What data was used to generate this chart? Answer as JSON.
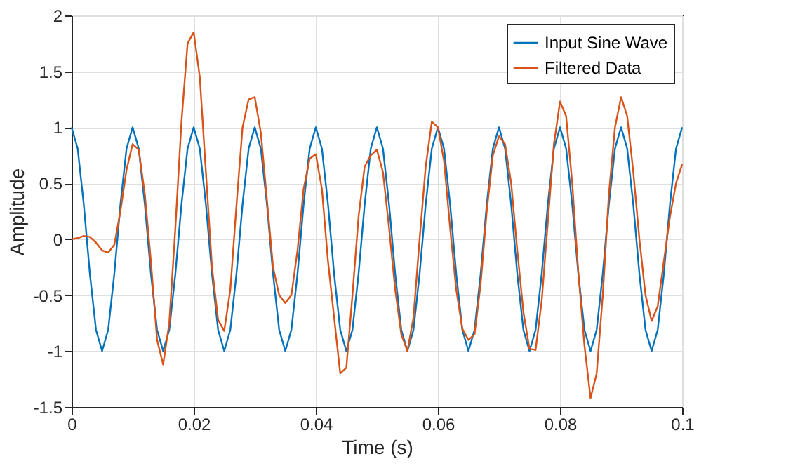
{
  "chart_data": {
    "type": "line",
    "xlabel": "Time (s)",
    "ylabel": "Amplitude",
    "x": [
      0,
      0.001,
      0.002,
      0.003,
      0.004,
      0.005,
      0.006,
      0.007,
      0.008,
      0.009,
      0.01,
      0.011,
      0.012,
      0.013,
      0.014,
      0.015,
      0.016,
      0.017,
      0.018,
      0.019,
      0.02,
      0.021,
      0.022,
      0.023,
      0.024,
      0.025,
      0.026,
      0.027,
      0.028,
      0.029,
      0.03,
      0.031,
      0.032,
      0.033,
      0.034,
      0.035,
      0.036,
      0.037,
      0.038,
      0.039,
      0.04,
      0.041,
      0.042,
      0.043,
      0.044,
      0.045,
      0.046,
      0.047,
      0.048,
      0.049,
      0.05,
      0.051,
      0.052,
      0.053,
      0.054,
      0.055,
      0.056,
      0.057,
      0.058,
      0.059,
      0.06,
      0.061,
      0.062,
      0.063,
      0.064,
      0.065,
      0.066,
      0.067,
      0.068,
      0.069,
      0.07,
      0.071,
      0.072,
      0.073,
      0.074,
      0.075,
      0.076,
      0.077,
      0.078,
      0.079,
      0.08,
      0.081,
      0.082,
      0.083,
      0.084,
      0.085,
      0.086,
      0.087,
      0.088,
      0.089,
      0.09,
      0.091,
      0.092,
      0.093,
      0.094,
      0.095,
      0.096,
      0.097,
      0.098,
      0.099,
      0.1
    ],
    "series": [
      {
        "name": "Input Sine Wave",
        "color": "#0072bd",
        "values": [
          1,
          0.81,
          0.31,
          -0.31,
          -0.81,
          -1,
          -0.81,
          -0.31,
          0.31,
          0.81,
          1,
          0.81,
          0.31,
          -0.31,
          -0.81,
          -1,
          -0.81,
          -0.31,
          0.31,
          0.81,
          1,
          0.81,
          0.31,
          -0.31,
          -0.81,
          -1,
          -0.81,
          -0.31,
          0.31,
          0.81,
          1,
          0.81,
          0.31,
          -0.31,
          -0.81,
          -1,
          -0.81,
          -0.31,
          0.31,
          0.81,
          1,
          0.81,
          0.31,
          -0.31,
          -0.81,
          -1,
          -0.81,
          -0.31,
          0.31,
          0.81,
          1,
          0.81,
          0.31,
          -0.31,
          -0.81,
          -1,
          -0.81,
          -0.31,
          0.31,
          0.81,
          1,
          0.81,
          0.31,
          -0.31,
          -0.81,
          -1,
          -0.81,
          -0.31,
          0.31,
          0.81,
          1,
          0.81,
          0.31,
          -0.31,
          -0.81,
          -1,
          -0.81,
          -0.31,
          0.31,
          0.81,
          1,
          0.81,
          0.31,
          -0.31,
          -0.81,
          -1,
          -0.81,
          -0.31,
          0.31,
          0.81,
          1,
          0.81,
          0.31,
          -0.31,
          -0.81,
          -1,
          -0.81,
          -0.31,
          0.31,
          0.81,
          1
        ]
      },
      {
        "name": "Filtered Data",
        "color": "#d95319",
        "values": [
          0,
          0.01,
          0.03,
          0.02,
          -0.03,
          -0.1,
          -0.12,
          -0.05,
          0.25,
          0.62,
          0.85,
          0.8,
          0.4,
          -0.2,
          -0.9,
          -1.12,
          -0.75,
          0.1,
          1.05,
          1.75,
          1.85,
          1.45,
          0.6,
          -0.25,
          -0.72,
          -0.82,
          -0.45,
          0.3,
          1.0,
          1.25,
          1.27,
          0.95,
          0.35,
          -0.25,
          -0.5,
          -0.57,
          -0.5,
          -0.1,
          0.45,
          0.72,
          0.76,
          0.45,
          -0.2,
          -0.7,
          -1.2,
          -1.15,
          -0.5,
          0.2,
          0.65,
          0.75,
          0.8,
          0.6,
          0.1,
          -0.45,
          -0.85,
          -1.0,
          -0.7,
          0.0,
          0.65,
          1.05,
          1.0,
          0.7,
          0.1,
          -0.45,
          -0.8,
          -0.9,
          -0.85,
          -0.4,
          0.25,
          0.75,
          0.92,
          0.85,
          0.5,
          -0.1,
          -0.65,
          -0.98,
          -0.99,
          -0.55,
          0.15,
          0.85,
          1.23,
          1.1,
          0.5,
          -0.3,
          -0.95,
          -1.42,
          -1.2,
          -0.5,
          0.4,
          1.0,
          1.27,
          1.1,
          0.6,
          0.0,
          -0.5,
          -0.73,
          -0.6,
          -0.2,
          0.2,
          0.5,
          0.67
        ]
      }
    ],
    "xlim": [
      0,
      0.1
    ],
    "xticks": [
      0,
      0.02,
      0.04,
      0.06,
      0.08,
      0.1
    ],
    "ylim": [
      -1.5,
      2
    ],
    "yticks": [
      -1.5,
      -1,
      -0.5,
      0,
      0.5,
      1,
      1.5,
      2
    ],
    "grid": true,
    "legend": "top right",
    "marker": "none",
    "line_style": "solid"
  }
}
